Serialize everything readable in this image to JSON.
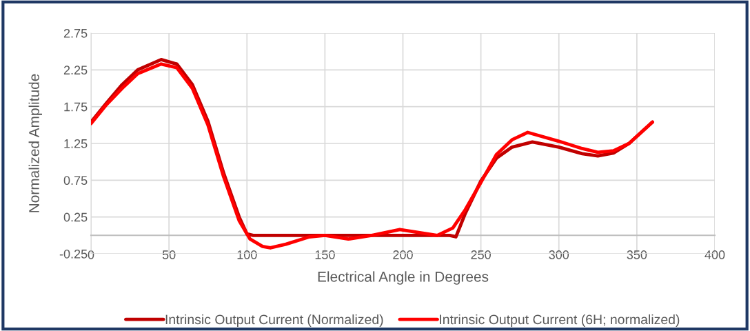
{
  "chart_data": {
    "type": "line",
    "xlabel": "Electrical Angle in Degrees",
    "ylabel": "Normalized Amplitude",
    "xlim": [
      0,
      400
    ],
    "xticks": [
      0,
      50,
      100,
      150,
      200,
      250,
      300,
      350,
      400
    ],
    "ylim": [
      -0.25,
      2.75
    ],
    "yticks": [
      -0.25,
      0.25,
      0.75,
      1.25,
      1.75,
      2.25,
      2.75
    ],
    "grid": true,
    "legend": "bottom",
    "marker": "none",
    "line_style": "solid",
    "series": [
      {
        "name": "Intrinsic Output Current (Normalized)",
        "color": "#c00000",
        "x": [
          0,
          10,
          20,
          30,
          45,
          55,
          65,
          75,
          85,
          95,
          100,
          104,
          230,
          234,
          240,
          250,
          260,
          270,
          283,
          300,
          315,
          325,
          335,
          345,
          360
        ],
        "values": [
          1.54,
          1.8,
          2.05,
          2.25,
          2.39,
          2.33,
          2.05,
          1.55,
          0.85,
          0.25,
          0.02,
          0.0,
          0.0,
          -0.02,
          0.3,
          0.74,
          1.05,
          1.2,
          1.27,
          1.2,
          1.11,
          1.08,
          1.12,
          1.25,
          1.54
        ]
      },
      {
        "name": "Intrinsic Output Current (6H; normalized)",
        "color": "#ff0000",
        "x": [
          0,
          10,
          20,
          30,
          45,
          55,
          65,
          75,
          85,
          95,
          102,
          110,
          115,
          125,
          140,
          150,
          165,
          180,
          198,
          210,
          222,
          232,
          240,
          250,
          260,
          270,
          280,
          300,
          315,
          325,
          335,
          345,
          360
        ],
        "values": [
          1.52,
          1.78,
          2.0,
          2.2,
          2.33,
          2.28,
          2.0,
          1.5,
          0.8,
          0.2,
          -0.05,
          -0.15,
          -0.17,
          -0.12,
          -0.02,
          0.0,
          -0.05,
          0.0,
          0.08,
          0.04,
          0.0,
          0.1,
          0.35,
          0.72,
          1.1,
          1.3,
          1.4,
          1.28,
          1.18,
          1.13,
          1.15,
          1.25,
          1.54
        ]
      }
    ]
  }
}
